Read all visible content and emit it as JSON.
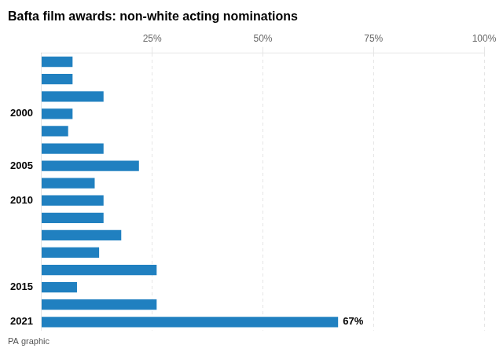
{
  "chart_data": {
    "type": "bar",
    "orientation": "horizontal",
    "title": "Bafta film awards: non-white acting nominations",
    "footer": "PA graphic",
    "categories": [
      null,
      null,
      null,
      "2000",
      null,
      null,
      "2005",
      null,
      "2010",
      null,
      null,
      null,
      null,
      "2015",
      null,
      "2021"
    ],
    "values": [
      7,
      7,
      14,
      7,
      6,
      14,
      22,
      12,
      14,
      14,
      18,
      13,
      26,
      8,
      26,
      67
    ],
    "value_labels": [
      null,
      null,
      null,
      null,
      null,
      null,
      null,
      null,
      null,
      null,
      null,
      null,
      null,
      null,
      null,
      "67%"
    ],
    "color": "#2080c0",
    "xlim": [
      0,
      100
    ],
    "xticks": [
      {
        "value": 25,
        "label": "25%"
      },
      {
        "value": 50,
        "label": "50%"
      },
      {
        "value": 75,
        "label": "75%"
      },
      {
        "value": 100,
        "label": "100%"
      }
    ],
    "grid": true
  }
}
